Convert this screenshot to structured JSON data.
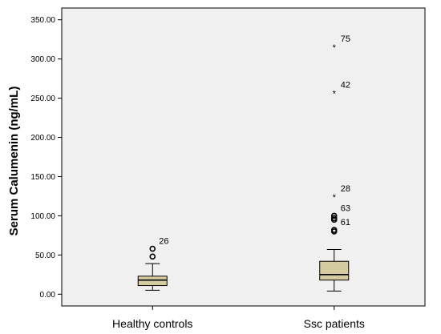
{
  "chart_data": {
    "type": "box",
    "title": "",
    "xlabel": "",
    "ylabel": "Serum Calumenin (ng/mL)",
    "ylim": [
      -15,
      365
    ],
    "yticks": [
      "0.00",
      "50.00",
      "100.00",
      "150.00",
      "200.00",
      "250.00",
      "300.00",
      "350.00"
    ],
    "ytick_values": [
      0,
      50,
      100,
      150,
      200,
      250,
      300,
      350
    ],
    "grid": false,
    "categories": [
      "Healthy controls",
      "Ssc patients"
    ],
    "boxes": [
      {
        "name": "Healthy controls",
        "whisker_low": 5,
        "q1": 11,
        "median": 18,
        "q3": 23,
        "whisker_high": 39,
        "outliers": [
          {
            "value": 58,
            "marker": "circle",
            "label": "26"
          },
          {
            "value": 48,
            "marker": "circle",
            "label": ""
          }
        ]
      },
      {
        "name": "Ssc patients",
        "whisker_low": 4,
        "q1": 18,
        "median": 25,
        "q3": 42,
        "whisker_high": 57,
        "outliers": [
          {
            "value": 316,
            "marker": "star",
            "label": "75"
          },
          {
            "value": 257,
            "marker": "star",
            "label": "42"
          },
          {
            "value": 125,
            "marker": "star",
            "label": "28"
          },
          {
            "value": 100,
            "marker": "circle",
            "label": "63"
          },
          {
            "value": 97,
            "marker": "circle",
            "label": ""
          },
          {
            "value": 95,
            "marker": "circle",
            "label": ""
          },
          {
            "value": 82,
            "marker": "circle",
            "label": "61"
          },
          {
            "value": 80,
            "marker": "circle",
            "label": ""
          }
        ]
      }
    ],
    "colors": {
      "plot_background": "#f0f0f0",
      "box_fill": "#d4cc9e",
      "line": "#000000"
    }
  }
}
